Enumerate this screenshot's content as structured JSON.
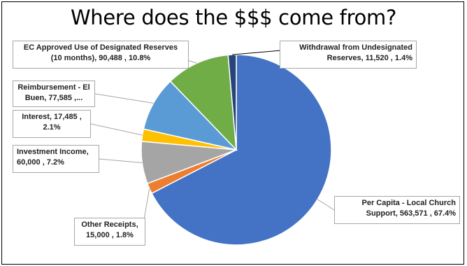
{
  "chart_data": {
    "type": "pie",
    "title": "Where does the $$$ come from?",
    "slices": [
      {
        "label": "Per Capita - Local Church Support",
        "value": 563571,
        "percent": "67.4%",
        "color": "#4472c4",
        "label_lines": [
          "Per Capita - Local Church",
          "Support,  563,571 , 67.4%"
        ]
      },
      {
        "label": "Other Receipts",
        "value": 15000,
        "percent": "1.8%",
        "color": "#ed7d31",
        "label_lines": [
          "Other Receipts,",
          "15,000 , 1.8%"
        ]
      },
      {
        "label": "Investment Income",
        "value": 60000,
        "percent": "7.2%",
        "color": "#a5a5a5",
        "label_lines": [
          "Investment Income,",
          "60,000 , 7.2%"
        ]
      },
      {
        "label": "Interest",
        "value": 17485,
        "percent": "2.1%",
        "color": "#ffc000",
        "label_lines": [
          "Interest,  17,485 ,",
          "2.1%"
        ]
      },
      {
        "label": "Reimbursement - El Buen...",
        "value": 77585,
        "percent": "9.3%",
        "color": "#5b9bd5",
        "label_lines": [
          "Reimbursement - El",
          "Buen,  77,585 ,..."
        ]
      },
      {
        "label": "EC Approved Use of Designated Reserves (10 months)",
        "value": 90488,
        "percent": "10.8%",
        "color": "#70ad47",
        "label_lines": [
          "EC Approved Use of Designated Reserves",
          "(10 months),  90,488 , 10.8%"
        ]
      },
      {
        "label": "Withdrawal from Undesignated Reserves",
        "value": 11520,
        "percent": "1.4%",
        "color": "#264478",
        "label_lines": [
          "Withdrawal from Undesignated",
          "Reserves,  11,520 , 1.4%"
        ]
      }
    ]
  }
}
